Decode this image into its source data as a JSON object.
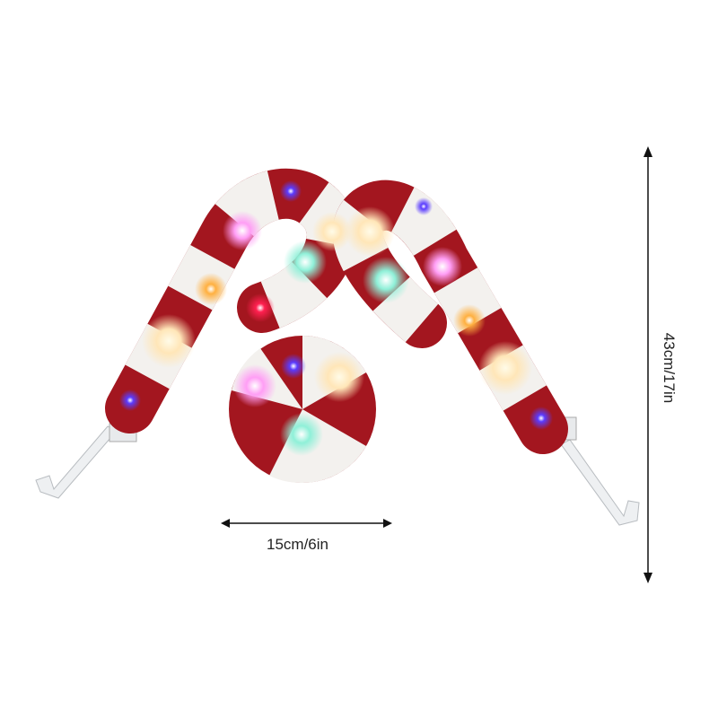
{
  "product": {
    "width_dimension": "15cm/6in",
    "height_dimension": "43cm/17in"
  },
  "colors": {
    "red": "#a3161f",
    "white": "#f3f1ee",
    "light_colors": [
      "#ffe9c0",
      "#ff9ef5",
      "#9ff5e0",
      "#6a4cff",
      "#ffb84a",
      "#ff2a5a"
    ]
  }
}
